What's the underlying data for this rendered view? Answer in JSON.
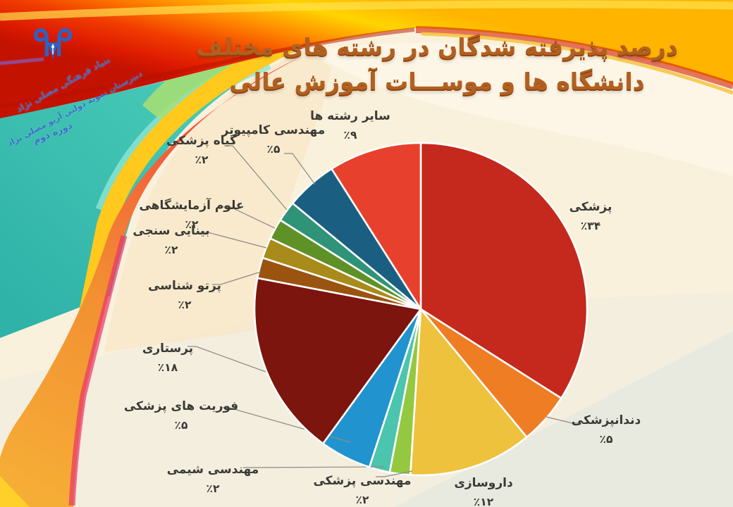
{
  "header": {
    "title_line1": "درصد پذیرفته شدگان در رشته های مختلف",
    "title_line2": "دانشگاه ها و موســـات آموزش عالی",
    "title_color": "#b2601f"
  },
  "logo": {
    "line1": "بنیاد فرهنگی مصلی نژاد",
    "line2": "دبیرستان نمونه دولتی آریو مصلی نژاد",
    "line3": "دوره دوم",
    "color": "#2b62c4"
  },
  "style": {
    "background_cream": "#faf1dc",
    "label_text": "#3a3a36",
    "leader_line": "#8b8b84",
    "slice_divider": "#ffffff"
  },
  "chart_data": {
    "type": "pie",
    "title": "درصد پذیرفته شدگان در رشته های مختلف دانشگاه ها و موسسات آموزش عالی",
    "direction": "clockwise",
    "start_angle_deg": 0,
    "labels_position": "outside",
    "slices": [
      {
        "label": "پزشکی",
        "value": 34,
        "display": "٪۳۴",
        "color": "#c5281c"
      },
      {
        "label": "دندانپزشکی",
        "value": 5,
        "display": "٪۵",
        "color": "#ef7d23"
      },
      {
        "label": "داروسازی",
        "value": 12,
        "display": "٪۱۲",
        "color": "#eec23d"
      },
      {
        "label": "مهندسی پزشکی",
        "value": 2,
        "display": "٪۲",
        "color": "#94c840"
      },
      {
        "label": "مهندسی شیمی",
        "value": 2,
        "display": "٪۲",
        "color": "#4bc5ad"
      },
      {
        "label": "فوریت های پزشکی",
        "value": 5,
        "display": "٪۵",
        "color": "#2193cf"
      },
      {
        "label": "پرستاری",
        "value": 18,
        "display": "٪۱۸",
        "color": "#7b150d"
      },
      {
        "label": "پرتو شناسی",
        "value": 2,
        "display": "٪۲",
        "color": "#9a5410"
      },
      {
        "label": "بینایی سنجی",
        "value": 2,
        "display": "٪۲",
        "color": "#a98b1b"
      },
      {
        "label": "علوم آزمایشگاهی",
        "value": 2,
        "display": "٪۲",
        "color": "#5f9226"
      },
      {
        "label": "گیاه پزشکی",
        "value": 2,
        "display": "٪۲",
        "color": "#2f9377"
      },
      {
        "label": "مهندسی کامپیوتر",
        "value": 5,
        "display": "٪۵",
        "color": "#1a5f82"
      },
      {
        "label": "سایر رشته ها",
        "value": 9,
        "display": "٪۹",
        "color": "#e7402c"
      }
    ]
  }
}
